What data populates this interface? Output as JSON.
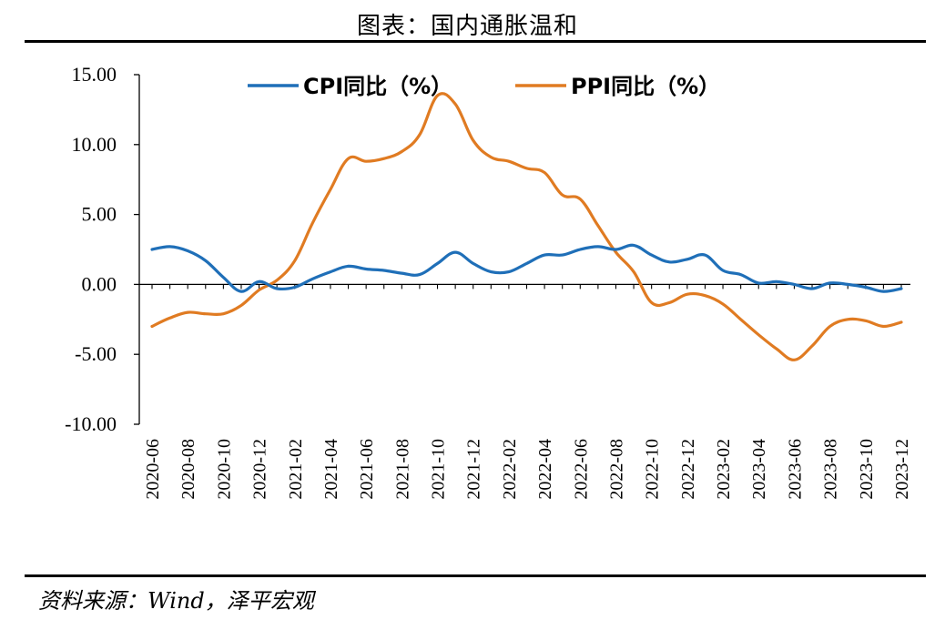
{
  "title": "图表：国内通胀温和",
  "source": "资料来源：Wind，泽平宏观",
  "colors": {
    "cpi": "#1f6fb8",
    "ppi": "#e07b22"
  },
  "chart_data": {
    "type": "line",
    "ylim": [
      -10,
      15
    ],
    "y_ticks": [
      "15.00",
      "10.00",
      "5.00",
      "0.00",
      "-5.00",
      "-10.00"
    ],
    "y_tick_values": [
      15,
      10,
      5,
      0,
      -5,
      -10
    ],
    "x_ticks": [
      "2020-06",
      "2020-08",
      "2020-10",
      "2020-12",
      "2021-02",
      "2021-04",
      "2021-06",
      "2021-08",
      "2021-10",
      "2021-12",
      "2022-02",
      "2022-04",
      "2022-06",
      "2022-08",
      "2022-10",
      "2022-12",
      "2023-02",
      "2023-04",
      "2023-06",
      "2023-08",
      "2023-10",
      "2023-12"
    ],
    "x": [
      "2020-06",
      "2020-07",
      "2020-08",
      "2020-09",
      "2020-10",
      "2020-11",
      "2020-12",
      "2021-01",
      "2021-02",
      "2021-03",
      "2021-04",
      "2021-05",
      "2021-06",
      "2021-07",
      "2021-08",
      "2021-09",
      "2021-10",
      "2021-11",
      "2021-12",
      "2022-01",
      "2022-02",
      "2022-03",
      "2022-04",
      "2022-05",
      "2022-06",
      "2022-07",
      "2022-08",
      "2022-09",
      "2022-10",
      "2022-11",
      "2022-12",
      "2023-01",
      "2023-02",
      "2023-03",
      "2023-04",
      "2023-05",
      "2023-06",
      "2023-07",
      "2023-08",
      "2023-09",
      "2023-10",
      "2023-11",
      "2023-12"
    ],
    "series": [
      {
        "name": "CPI同比（%）",
        "values": [
          2.5,
          2.7,
          2.4,
          1.7,
          0.5,
          -0.5,
          0.2,
          -0.3,
          -0.2,
          0.4,
          0.9,
          1.3,
          1.1,
          1.0,
          0.8,
          0.7,
          1.5,
          2.3,
          1.5,
          0.9,
          0.9,
          1.5,
          2.1,
          2.1,
          2.5,
          2.7,
          2.5,
          2.8,
          2.1,
          1.6,
          1.8,
          2.1,
          1.0,
          0.7,
          0.1,
          0.2,
          0.0,
          -0.3,
          0.1,
          0.0,
          -0.2,
          -0.5,
          -0.3
        ]
      },
      {
        "name": "PPI同比（%）",
        "values": [
          -3.0,
          -2.4,
          -2.0,
          -2.1,
          -2.1,
          -1.5,
          -0.4,
          0.3,
          1.7,
          4.4,
          6.8,
          9.0,
          8.8,
          9.0,
          9.5,
          10.7,
          13.5,
          12.9,
          10.3,
          9.1,
          8.8,
          8.3,
          8.0,
          6.4,
          6.1,
          4.2,
          2.3,
          0.9,
          -1.3,
          -1.3,
          -0.7,
          -0.8,
          -1.4,
          -2.5,
          -3.6,
          -4.6,
          -5.4,
          -4.4,
          -3.0,
          -2.5,
          -2.6,
          -3.0,
          -2.7
        ]
      }
    ]
  }
}
